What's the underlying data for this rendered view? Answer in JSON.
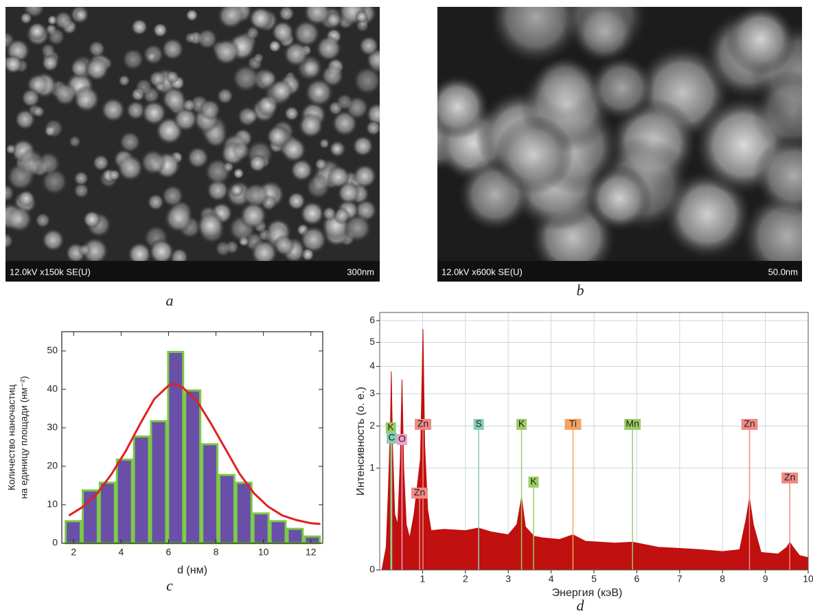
{
  "panels": [
    {
      "label": "a",
      "scale_info": "12.0kV x150k SE(U)",
      "scale_bar": "300nm"
    },
    {
      "label": "b",
      "scale_info": "12.0kV x600k SE(U)",
      "scale_bar": "50.0nm"
    }
  ],
  "chart_data": [
    {
      "type": "histogram",
      "panel_label": "c",
      "xlabel": "d (нм)",
      "ylabel": [
        "Количество наночастиц",
        "на единицу площади (нм⁻²)"
      ],
      "bins": [
        1.62,
        2.34,
        3.06,
        3.78,
        4.5,
        5.22,
        5.94,
        6.66,
        7.38,
        8.1,
        8.82,
        9.54,
        10.26,
        10.98,
        11.7,
        12.42
      ],
      "values": [
        6,
        14,
        16,
        22,
        28,
        32,
        50,
        40,
        26,
        18,
        16,
        8,
        6,
        4,
        2
      ],
      "color": "#6a4fa8",
      "edgecolor": "#7ac943",
      "curve": {
        "x": [
          1.8,
          2.4,
          3.0,
          3.6,
          4.2,
          4.8,
          5.4,
          6.0,
          6.2,
          6.6,
          7.2,
          7.8,
          8.4,
          9.0,
          9.6,
          10.2,
          10.8,
          11.4,
          12.0,
          12.4
        ],
        "values": [
          7.2,
          9.5,
          13,
          18,
          24,
          31,
          37.5,
          41,
          41.5,
          40.5,
          37,
          31,
          24.5,
          18,
          13,
          9.5,
          7.2,
          6,
          5.2,
          5.0
        ],
        "color": "#e02020"
      },
      "xlim": [
        1.5,
        12.5
      ],
      "ylim": [
        0,
        55
      ],
      "xticks": [
        2,
        4,
        6,
        8,
        10,
        12
      ],
      "yticks": [
        0,
        10,
        20,
        30,
        40,
        50
      ]
    },
    {
      "type": "area",
      "panel_label": "d",
      "xlabel": "Энергия (кэВ)",
      "ylabel": "Интенсивность (о. е.)",
      "x": [
        0.05,
        0.15,
        0.2,
        0.25,
        0.27,
        0.3,
        0.35,
        0.42,
        0.48,
        0.52,
        0.56,
        0.62,
        0.7,
        0.8,
        0.88,
        0.95,
        1.01,
        1.05,
        1.12,
        1.2,
        1.5,
        2.0,
        2.3,
        2.6,
        3.0,
        3.2,
        3.31,
        3.4,
        3.6,
        3.8,
        4.2,
        4.51,
        4.8,
        5.5,
        5.9,
        6.5,
        7.0,
        7.5,
        8.0,
        8.4,
        8.55,
        8.63,
        8.72,
        8.9,
        9.3,
        9.5,
        9.57,
        9.65,
        9.8,
        10
      ],
      "values": [
        0,
        0.05,
        0.6,
        2.0,
        3.8,
        1.5,
        0.3,
        0.2,
        1.2,
        3.5,
        1.0,
        0.2,
        0.1,
        0.3,
        0.7,
        1.2,
        5.6,
        1.5,
        0.35,
        0.15,
        0.16,
        0.15,
        0.17,
        0.14,
        0.12,
        0.2,
        0.51,
        0.18,
        0.11,
        0.1,
        0.09,
        0.12,
        0.08,
        0.07,
        0.075,
        0.05,
        0.045,
        0.04,
        0.033,
        0.04,
        0.25,
        0.5,
        0.2,
        0.03,
        0.025,
        0.05,
        0.075,
        0.05,
        0.02,
        0.015
      ],
      "color": "#c0100f",
      "yscale": "sqrt",
      "grid": true,
      "markers": [
        {
          "label": "K",
          "x": 0.26,
          "color": "#9ccc65"
        },
        {
          "label": "C",
          "x": 0.28,
          "color": "#86cdb8"
        },
        {
          "label": "O",
          "x": 0.52,
          "color": "#f3a0c8"
        },
        {
          "label": "Zn",
          "x": 1.01,
          "color": "#f08a84"
        },
        {
          "label": "Zn",
          "x": 0.93,
          "color": "#f08a84"
        },
        {
          "label": "S",
          "x": 2.31,
          "color": "#86cdb8"
        },
        {
          "label": "K",
          "x": 3.31,
          "color": "#9ccc65"
        },
        {
          "label": "K",
          "x": 3.59,
          "color": "#9ccc65"
        },
        {
          "label": "Ti",
          "x": 4.51,
          "color": "#f4a460"
        },
        {
          "label": "Mn",
          "x": 5.9,
          "color": "#9ccc65"
        },
        {
          "label": "Zn",
          "x": 8.63,
          "color": "#f08a84"
        },
        {
          "label": "Zn",
          "x": 9.57,
          "color": "#f08a84"
        }
      ],
      "xlim": [
        0,
        10
      ],
      "ylim": [
        0,
        6.4
      ],
      "xticks": [
        1,
        2,
        3,
        4,
        5,
        6,
        7,
        8,
        9,
        10
      ],
      "yticks": [
        0,
        1,
        2,
        3,
        4,
        5,
        6
      ]
    }
  ]
}
